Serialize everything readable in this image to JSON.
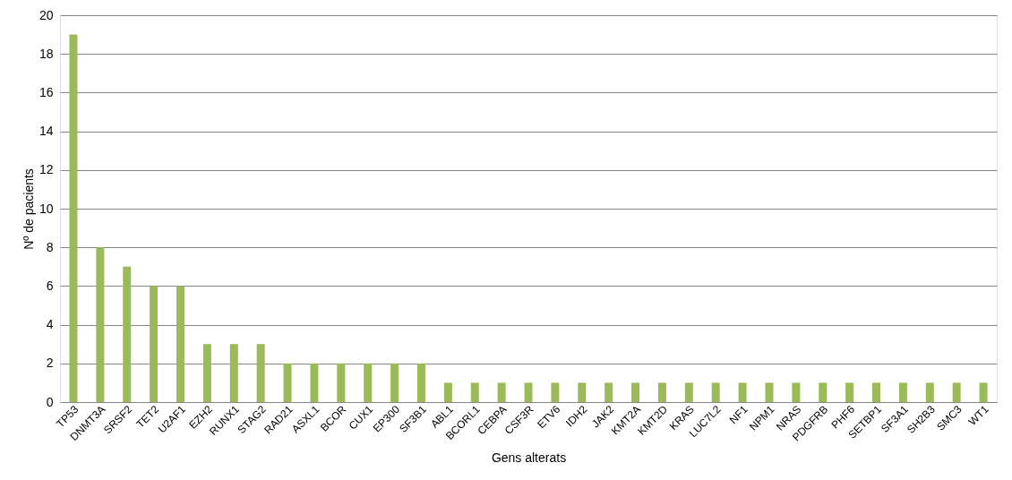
{
  "chart_data": {
    "type": "bar",
    "xlabel": "Gens alterats",
    "ylabel": "Nº de pacients",
    "categories": [
      "TP53",
      "DNMT3A",
      "SRSF2",
      "TET2",
      "U2AF1",
      "EZH2",
      "RUNX1",
      "STAG2",
      "RAD21",
      "ASXL1",
      "BCOR",
      "CUX1",
      "EP300",
      "SF3B1",
      "ABL1",
      "BCORL1",
      "CEBPA",
      "CSF3R",
      "ETV6",
      "IDH2",
      "JAK2",
      "KMT2A",
      "KMT2D",
      "KRAS",
      "LUC7L2",
      "NF1",
      "NPM1",
      "NRAS",
      "PDGFRB",
      "PHF6",
      "SETBP1",
      "SF3A1",
      "SH2B3",
      "SMC3",
      "WT1"
    ],
    "values": [
      19,
      8,
      7,
      6,
      6,
      3,
      3,
      3,
      2,
      2,
      2,
      2,
      2,
      2,
      1,
      1,
      1,
      1,
      1,
      1,
      1,
      1,
      1,
      1,
      1,
      1,
      1,
      1,
      1,
      1,
      1,
      1,
      1,
      1,
      1
    ],
    "color": "#9bbb59",
    "ylim": [
      0,
      20
    ],
    "yticks": [
      0,
      2,
      4,
      6,
      8,
      10,
      12,
      14,
      16,
      18,
      20
    ],
    "grid": "y"
  }
}
